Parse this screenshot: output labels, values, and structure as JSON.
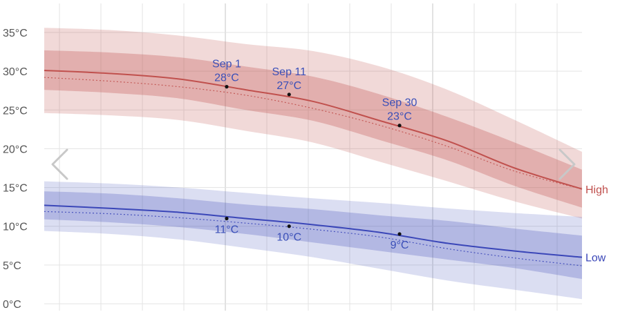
{
  "chart_data": {
    "type": "area",
    "title": "",
    "xlabel": "",
    "ylabel": "",
    "y_ticks": [
      "0°C",
      "5°C",
      "10°C",
      "15°C",
      "20°C",
      "25°C",
      "30°C",
      "35°C"
    ],
    "ylim": [
      0,
      36
    ],
    "xlim": [
      0,
      56
    ],
    "grid": true,
    "x": [
      0,
      7,
      14,
      21,
      28,
      35,
      42,
      49,
      56
    ],
    "series": [
      {
        "name": "High",
        "color": "#c0504d",
        "mean": [
          30.1,
          29.7,
          29.0,
          27.6,
          26.1,
          23.6,
          21.0,
          17.5,
          14.8
        ],
        "normal": [
          29.2,
          28.7,
          28.0,
          26.9,
          25.2,
          23.0,
          20.3,
          17.1,
          14.8
        ],
        "band_inner": {
          "low": [
            27.6,
            27.2,
            26.5,
            25.0,
            23.6,
            21.1,
            18.5,
            15.2,
            12.4
          ],
          "high": [
            32.7,
            32.4,
            31.8,
            30.6,
            29.3,
            27.0,
            24.1,
            20.8,
            17.3
          ]
        },
        "band_outer": {
          "low": [
            24.6,
            24.3,
            23.7,
            22.3,
            20.8,
            18.3,
            15.8,
            13.2,
            11.0
          ],
          "high": [
            35.6,
            35.3,
            34.6,
            33.5,
            32.6,
            30.6,
            27.6,
            23.7,
            19.6
          ]
        },
        "points": [
          {
            "x": 19,
            "y": 28,
            "label_date": "Sep 1",
            "label_value": "28°C"
          },
          {
            "x": 25.5,
            "y": 27,
            "label_date": "Sep 11",
            "label_value": "27°C"
          },
          {
            "x": 37,
            "y": 23,
            "label_date": "Sep 30",
            "label_value": "23°C"
          }
        ]
      },
      {
        "name": "Low",
        "color": "#3a46b8",
        "mean": [
          12.7,
          12.3,
          11.8,
          11.0,
          10.2,
          9.2,
          7.8,
          6.8,
          6.0
        ],
        "normal": [
          11.9,
          11.6,
          11.1,
          10.4,
          9.6,
          8.6,
          7.1,
          5.9,
          4.9
        ],
        "band_inner": {
          "low": [
            10.9,
            10.5,
            9.9,
            9.0,
            7.9,
            6.8,
            5.7,
            4.6,
            3.2
          ],
          "high": [
            14.5,
            14.2,
            13.6,
            12.8,
            12.2,
            11.4,
            10.7,
            9.7,
            8.8
          ]
        },
        "band_outer": {
          "low": [
            9.4,
            9.0,
            8.3,
            7.2,
            6.0,
            4.5,
            3.0,
            1.8,
            0.6
          ],
          "high": [
            15.8,
            15.5,
            15.0,
            14.3,
            13.6,
            13.0,
            12.3,
            11.7,
            11.2
          ]
        },
        "points": [
          {
            "x": 19,
            "y": 11,
            "label_value": "11°C"
          },
          {
            "x": 25.5,
            "y": 10,
            "label_value": "10°C"
          },
          {
            "x": 37,
            "y": 9,
            "label_value": "9°C"
          }
        ]
      }
    ]
  }
}
